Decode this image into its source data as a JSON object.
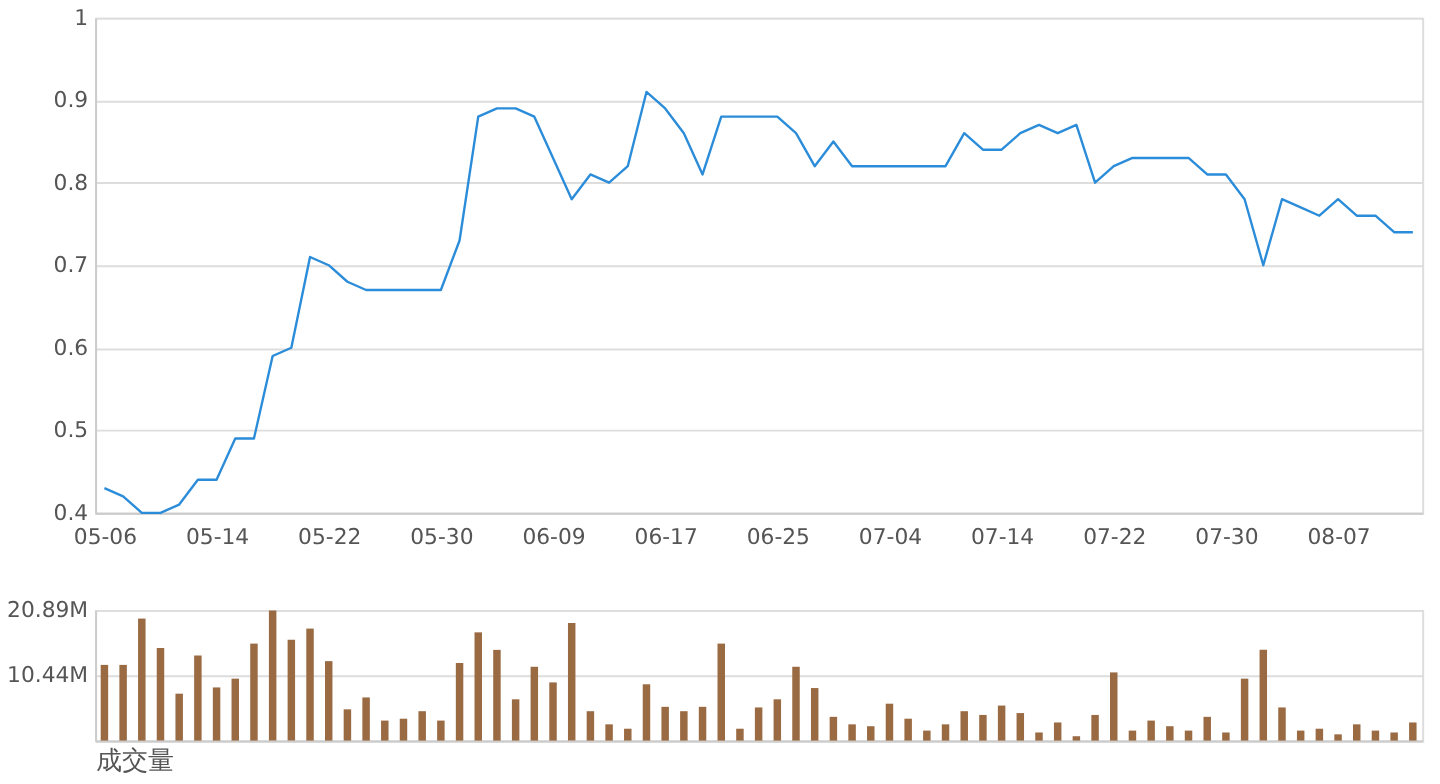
{
  "chart_data": [
    {
      "type": "line",
      "categories": [
        "05-06",
        null,
        null,
        null,
        null,
        null,
        "05-14",
        null,
        null,
        null,
        null,
        null,
        "05-22",
        null,
        null,
        null,
        null,
        null,
        "05-30",
        null,
        null,
        null,
        null,
        null,
        "06-09",
        null,
        null,
        null,
        null,
        null,
        "06-17",
        null,
        null,
        null,
        null,
        null,
        "06-25",
        null,
        null,
        null,
        null,
        null,
        "07-04",
        null,
        null,
        null,
        null,
        null,
        "07-14",
        null,
        null,
        null,
        null,
        null,
        "07-22",
        null,
        null,
        null,
        null,
        null,
        "07-30",
        null,
        null,
        null,
        null,
        null,
        "08-07",
        null,
        null,
        null,
        null
      ],
      "series": [
        {
          "color": "#2b8cd9",
          "values": [
            0.43,
            0.42,
            0.4,
            0.4,
            0.41,
            0.44,
            0.44,
            0.49,
            0.49,
            0.59,
            0.6,
            0.71,
            0.7,
            0.68,
            0.67,
            0.67,
            0.67,
            0.67,
            0.67,
            0.73,
            0.88,
            0.89,
            0.89,
            0.88,
            0.83,
            0.78,
            0.81,
            0.8,
            0.82,
            0.91,
            0.89,
            0.86,
            0.81,
            0.88,
            0.88,
            0.88,
            0.88,
            0.86,
            0.82,
            0.85,
            0.82,
            0.82,
            0.82,
            0.82,
            0.82,
            0.82,
            0.86,
            0.84,
            0.84,
            0.86,
            0.87,
            0.86,
            0.87,
            0.8,
            0.82,
            0.83,
            0.83,
            0.83,
            0.83,
            0.81,
            0.81,
            0.78,
            0.7,
            0.78,
            0.77,
            0.76,
            0.78,
            0.76,
            0.76,
            0.74,
            0.74
          ]
        }
      ],
      "ylim": [
        0.4,
        1
      ],
      "yticks": [
        0.4,
        0.5,
        0.6,
        0.7,
        0.8,
        0.9,
        1
      ],
      "grid": "y"
    },
    {
      "type": "bar",
      "xlabel": "成交量",
      "categories": [
        null,
        null,
        null,
        null,
        null,
        null,
        null,
        null,
        null,
        null,
        null,
        null,
        null,
        null,
        null,
        null,
        null,
        null,
        null,
        null,
        null,
        null,
        null,
        null,
        null,
        null,
        null,
        null,
        null,
        null,
        null,
        null,
        null,
        null,
        null,
        null,
        null,
        null,
        null,
        null,
        null,
        null,
        null,
        null,
        null,
        null,
        null,
        null,
        null,
        null,
        null,
        null,
        null,
        null,
        null,
        null,
        null,
        null,
        null,
        null,
        null,
        null,
        null,
        null,
        null,
        null,
        null,
        null,
        null,
        null,
        null
      ],
      "series": [
        {
          "color": "#9a6a43",
          "values": [
            12.1,
            12.1,
            19.5,
            14.8,
            7.5,
            13.6,
            8.5,
            9.9,
            15.5,
            20.8,
            16.1,
            17.9,
            12.7,
            5.0,
            6.9,
            3.2,
            3.5,
            4.7,
            3.2,
            12.4,
            17.3,
            14.5,
            6.6,
            11.8,
            9.3,
            18.8,
            4.7,
            2.6,
            1.9,
            9.0,
            5.4,
            4.7,
            5.4,
            15.5,
            1.9,
            5.3,
            6.6,
            11.8,
            8.4,
            3.8,
            2.6,
            2.3,
            5.9,
            3.5,
            1.6,
            2.6,
            4.7,
            4.1,
            5.6,
            4.4,
            1.3,
            2.9,
            0.7,
            4.1,
            10.9,
            1.6,
            3.2,
            2.3,
            1.6,
            3.8,
            1.3,
            9.9,
            14.5,
            5.3,
            1.6,
            1.9,
            1.0,
            2.6,
            1.6,
            1.3,
            2.9
          ]
        }
      ],
      "ylim": [
        0,
        20.89
      ],
      "yticks": [
        {
          "value": 0,
          "label": null
        },
        {
          "value": 10.44,
          "label": "10.44M"
        },
        {
          "value": 20.89,
          "label": "20.89M"
        }
      ],
      "grid": "y",
      "tick_labels": "y"
    }
  ]
}
